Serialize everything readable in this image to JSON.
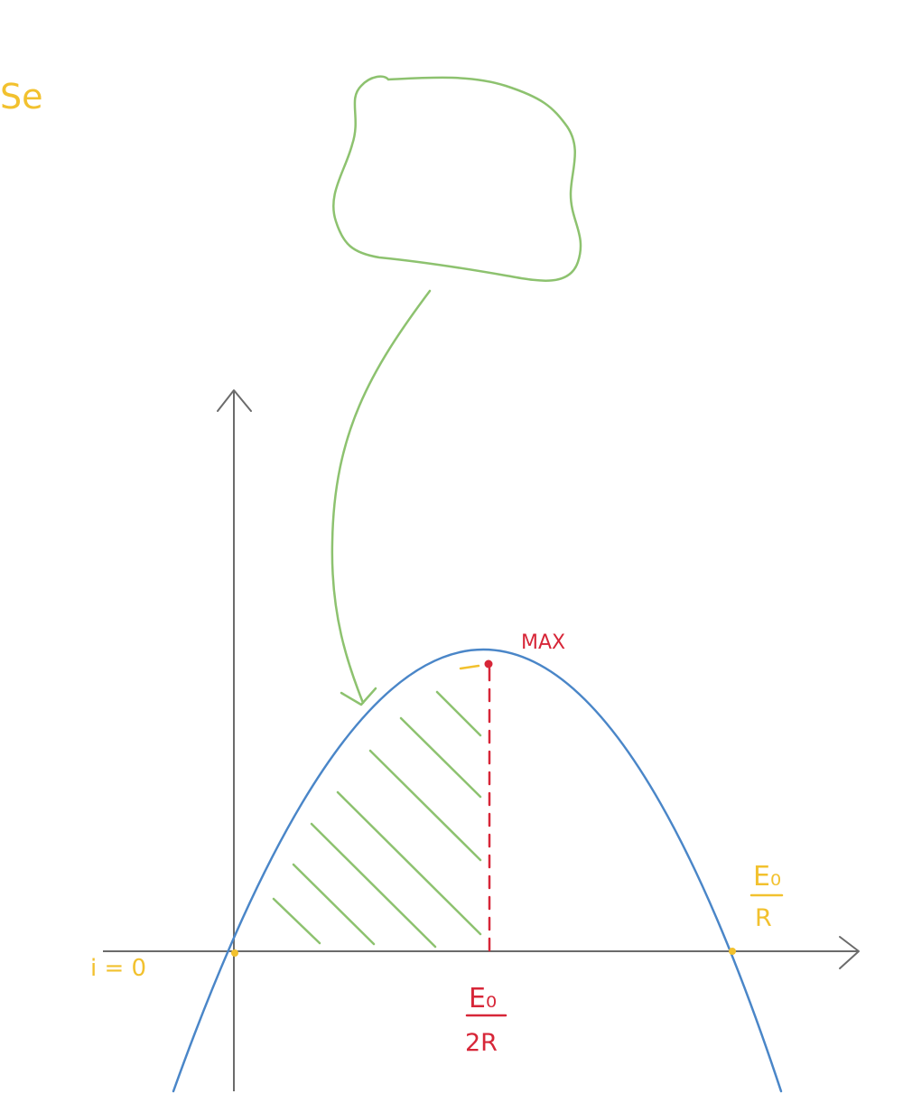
{
  "labels": {
    "corner": "Se",
    "max": "MAX",
    "origin": "i = 0",
    "peak_num": "E₀",
    "peak_den": "2R",
    "root_num": "E₀",
    "root_den": "R"
  },
  "colors": {
    "axis": "#6b6b6b",
    "curve": "#4a86c8",
    "hatch": "#8dc26f",
    "marker": "#d72638",
    "point": "#f2c12e"
  }
}
